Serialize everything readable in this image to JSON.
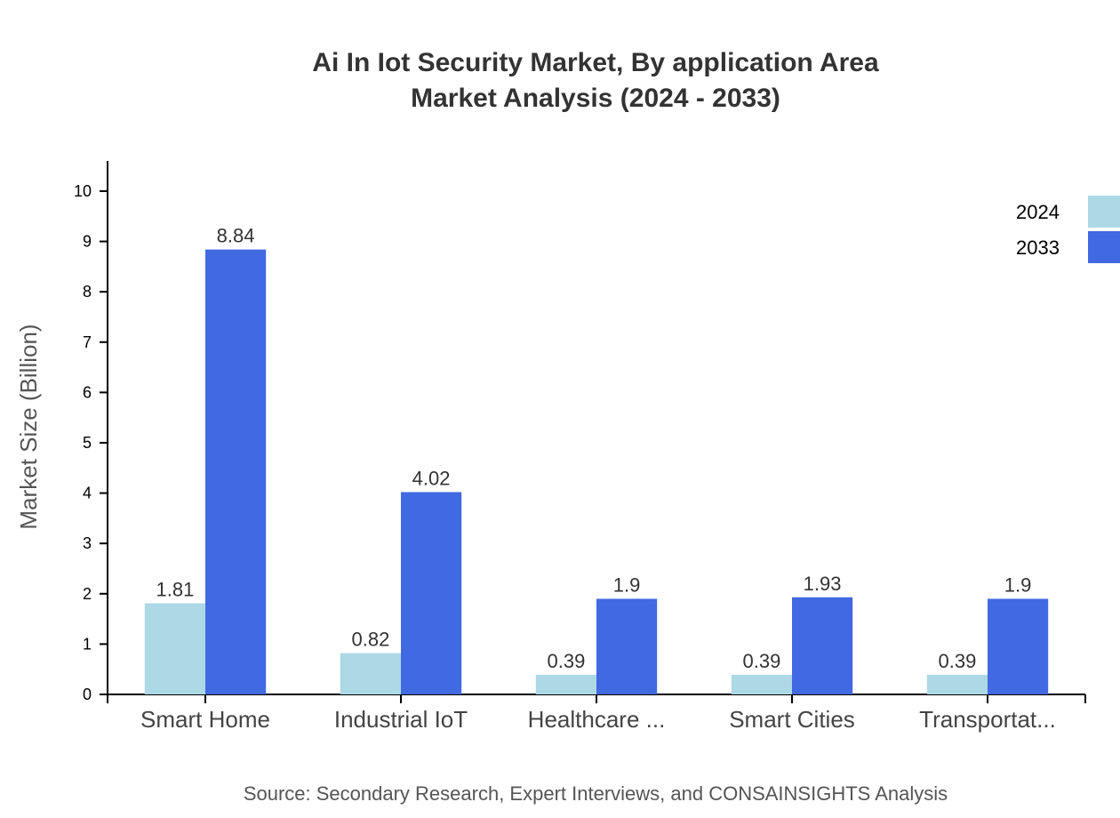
{
  "chart_data": {
    "type": "bar",
    "title_line1": "Ai In Iot Security Market, By application Area",
    "title_line2": "Market Analysis (2024 - 2033)",
    "xlabel": "",
    "ylabel": "Market Size (Billion)",
    "ylim": [
      0,
      10.6
    ],
    "yticks": [
      0,
      1,
      2,
      3,
      4,
      5,
      6,
      7,
      8,
      9,
      10
    ],
    "categories": [
      "Smart Home",
      "Industrial IoT",
      "Healthcare ...",
      "Smart Cities",
      "Transportat..."
    ],
    "series": [
      {
        "name": "2024",
        "color": "#ADD8E6",
        "values": [
          1.81,
          0.82,
          0.39,
          0.39,
          0.39
        ]
      },
      {
        "name": "2033",
        "color": "#4169E1",
        "values": [
          8.84,
          4.02,
          1.9,
          1.93,
          1.9
        ]
      }
    ],
    "legend_position": "top-right",
    "grid": false,
    "source": "Source: Secondary Research, Expert Interviews, and CONSAINSIGHTS Analysis"
  }
}
